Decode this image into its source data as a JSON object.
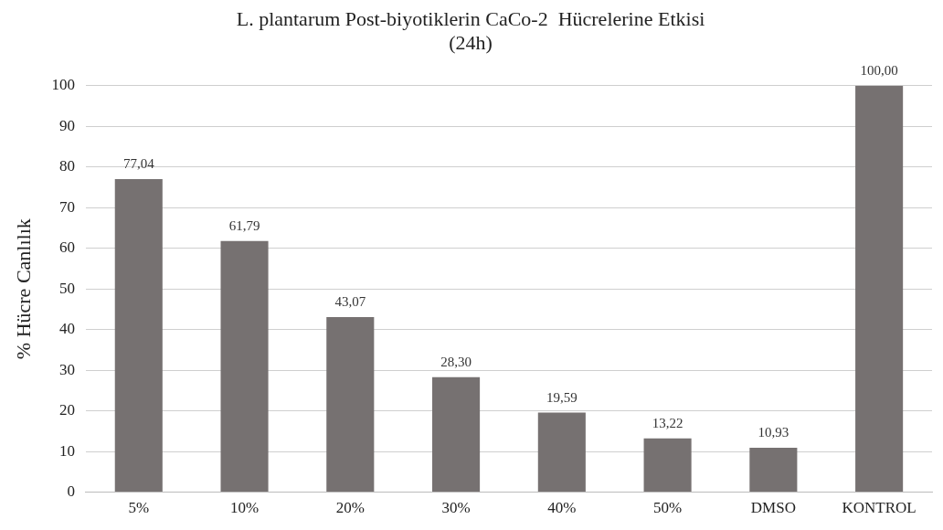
{
  "chart_data": {
    "type": "bar",
    "title": "L. plantarum Post-biyotiklerin CaCo-2  Hücrelerine Etkisi (24h)",
    "ylabel": "% Hücre Canlılık",
    "categories": [
      "5%",
      "10%",
      "20%",
      "30%",
      "40%",
      "50%",
      "DMSO",
      "KONTROL"
    ],
    "values": [
      77.04,
      61.79,
      43.07,
      28.3,
      19.59,
      13.22,
      10.93,
      100.0
    ],
    "value_labels": [
      "77,04",
      "61,79",
      "43,07",
      "28,30",
      "19,59",
      "13,22",
      "10,93",
      "100,00"
    ],
    "color": "#767171",
    "ylim": [
      0,
      100
    ],
    "yticks": [
      0,
      10,
      20,
      30,
      40,
      50,
      60,
      70,
      80,
      90,
      100
    ],
    "grid": "y",
    "legend": false
  }
}
